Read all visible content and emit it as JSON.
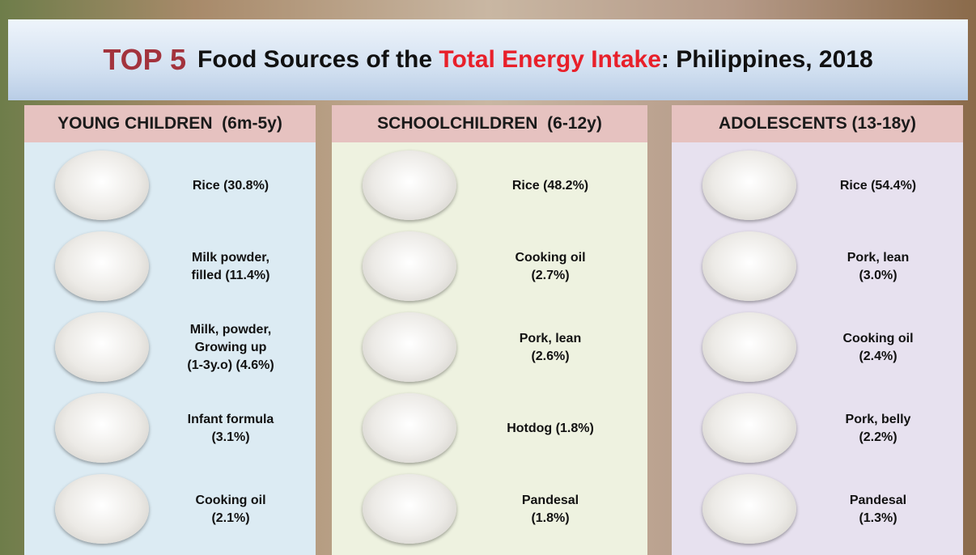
{
  "title": {
    "lead": "TOP 5",
    "text1": "Food Sources of the",
    "highlight": "Total Energy Intake",
    "text2": ": Philippines, 2018"
  },
  "columns": [
    {
      "header": "YOUNG CHILDREN  (6m-5y)",
      "items": [
        {
          "lines": [
            "Rice (30.8%)"
          ]
        },
        {
          "lines": [
            "Milk powder,",
            "filled (11.4%)"
          ]
        },
        {
          "lines": [
            "Milk, powder,",
            "Growing up",
            "(1-3y.o) (4.6%)"
          ]
        },
        {
          "lines": [
            "Infant formula",
            "(3.1%)"
          ]
        },
        {
          "lines": [
            "Cooking oil",
            "(2.1%)"
          ]
        }
      ]
    },
    {
      "header": "SCHOOLCHILDREN  (6-12y)",
      "items": [
        {
          "lines": [
            "Rice (48.2%)"
          ]
        },
        {
          "lines": [
            "Cooking oil",
            "(2.7%)"
          ]
        },
        {
          "lines": [
            "Pork, lean",
            "(2.6%)"
          ]
        },
        {
          "lines": [
            "Hotdog (1.8%)"
          ]
        },
        {
          "lines": [
            "Pandesal",
            "(1.8%)"
          ]
        }
      ]
    },
    {
      "header": "ADOLESCENTS (13-18y)",
      "items": [
        {
          "lines": [
            "Rice (54.4%)"
          ]
        },
        {
          "lines": [
            "Pork, lean",
            "(3.0%)"
          ]
        },
        {
          "lines": [
            "Cooking oil",
            "(2.4%)"
          ]
        },
        {
          "lines": [
            "Pork, belly",
            "(2.2%)"
          ]
        },
        {
          "lines": [
            "Pandesal",
            "(1.3%)"
          ]
        }
      ]
    }
  ]
}
